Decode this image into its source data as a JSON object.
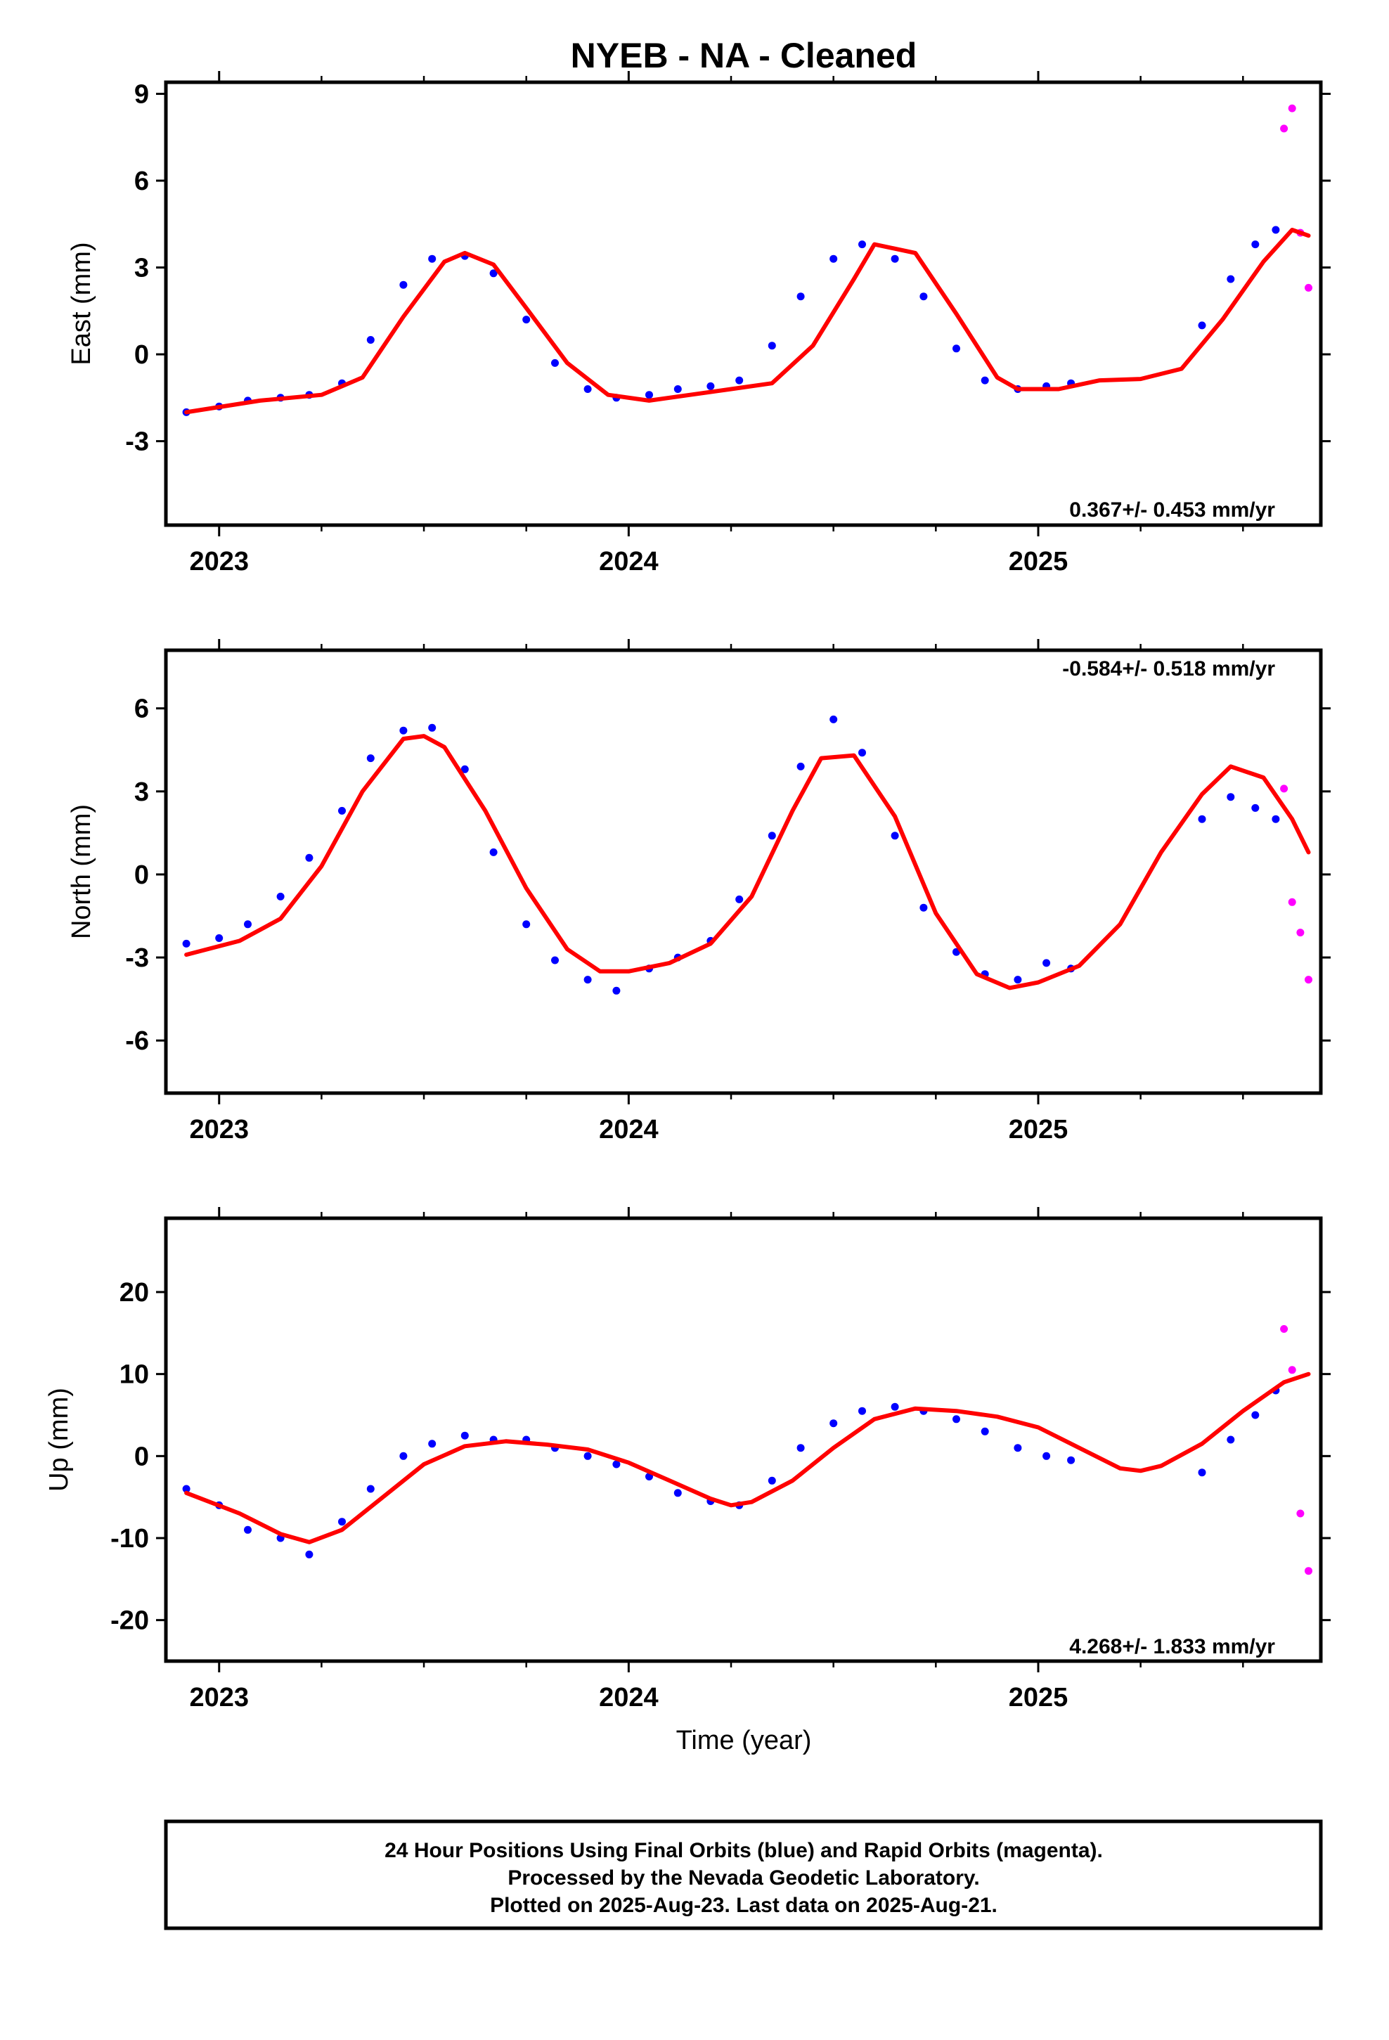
{
  "title": "NYEB  - NA - Cleaned",
  "colors": {
    "final_orbits": "#0000ff",
    "rapid_orbits": "#ff00ff",
    "model_fit": "#ff0000"
  },
  "x_axis": {
    "label": "Time (year)",
    "ticks": [
      "2023",
      "2024",
      "2025"
    ]
  },
  "chart_data": [
    {
      "type": "scatter",
      "panel": "east",
      "ylabel": "East (mm)",
      "rate": "0.367+/- 0.453 mm/yr",
      "xlim": [
        2022.87,
        2025.69
      ],
      "ylim": [
        -5.9,
        9.4
      ],
      "yticks": [
        "9",
        "6",
        "3",
        "0",
        "-3"
      ],
      "ytick_values": [
        9,
        6,
        3,
        0,
        -3
      ],
      "series": [
        {
          "name": "",
          "kind": "points",
          "color": "final",
          "x": [
            2022.92,
            2023.0,
            2023.07,
            2023.15,
            2023.22,
            2023.3,
            2023.37,
            2023.45,
            2023.52,
            2023.6,
            2023.67,
            2023.75,
            2023.82,
            2023.9,
            2023.97,
            2024.05,
            2024.12,
            2024.2,
            2024.27,
            2024.35,
            2024.42,
            2024.5,
            2024.57,
            2024.65,
            2024.72,
            2024.8,
            2024.87,
            2024.95,
            2025.02,
            2025.08,
            2025.4,
            2025.47,
            2025.53,
            2025.58
          ],
          "y": [
            -2.0,
            -1.8,
            -1.6,
            -1.5,
            -1.4,
            -1.0,
            0.5,
            2.4,
            3.3,
            3.4,
            2.8,
            1.2,
            -0.3,
            -1.2,
            -1.5,
            -1.4,
            -1.2,
            -1.1,
            -0.9,
            0.3,
            2.0,
            3.3,
            3.8,
            3.3,
            2.0,
            0.2,
            -0.9,
            -1.2,
            -1.1,
            -1.0,
            1.0,
            2.6,
            3.8,
            4.3
          ]
        },
        {
          "name": "",
          "kind": "points",
          "color": "rapid",
          "x": [
            2025.6,
            2025.62,
            2025.64,
            2025.66
          ],
          "y": [
            7.8,
            8.5,
            4.2,
            2.3
          ]
        },
        {
          "name": "",
          "kind": "line",
          "color": "fit",
          "x": [
            2022.92,
            2023.1,
            2023.25,
            2023.35,
            2023.45,
            2023.55,
            2023.6,
            2023.67,
            2023.75,
            2023.85,
            2023.95,
            2024.05,
            2024.15,
            2024.25,
            2024.35,
            2024.45,
            2024.55,
            2024.6,
            2024.7,
            2024.8,
            2024.9,
            2024.95,
            2025.05,
            2025.15,
            2025.25,
            2025.35,
            2025.45,
            2025.55,
            2025.62,
            2025.66
          ],
          "y": [
            -2.0,
            -1.6,
            -1.4,
            -0.8,
            1.3,
            3.2,
            3.5,
            3.1,
            1.6,
            -0.3,
            -1.4,
            -1.6,
            -1.4,
            -1.2,
            -1.0,
            0.3,
            2.6,
            3.8,
            3.5,
            1.4,
            -0.8,
            -1.2,
            -1.2,
            -0.9,
            -0.85,
            -0.5,
            1.2,
            3.2,
            4.3,
            4.1
          ]
        }
      ]
    },
    {
      "type": "scatter",
      "panel": "north",
      "ylabel": "North (mm)",
      "rate": "-0.584+/- 0.518 mm/yr",
      "xlim": [
        2022.87,
        2025.69
      ],
      "ylim": [
        -7.9,
        8.1
      ],
      "yticks": [
        "6",
        "3",
        "0",
        "-3",
        "-6"
      ],
      "ytick_values": [
        6,
        3,
        0,
        -3,
        -6
      ],
      "series": [
        {
          "name": "",
          "kind": "points",
          "color": "final",
          "x": [
            2022.92,
            2023.0,
            2023.07,
            2023.15,
            2023.22,
            2023.3,
            2023.37,
            2023.45,
            2023.52,
            2023.6,
            2023.67,
            2023.75,
            2023.82,
            2023.9,
            2023.97,
            2024.05,
            2024.12,
            2024.2,
            2024.27,
            2024.35,
            2024.42,
            2024.5,
            2024.57,
            2024.65,
            2024.72,
            2024.8,
            2024.87,
            2024.95,
            2025.02,
            2025.08,
            2025.4,
            2025.47,
            2025.53,
            2025.58
          ],
          "y": [
            -2.5,
            -2.3,
            -1.8,
            -0.8,
            0.6,
            2.3,
            4.2,
            5.2,
            5.3,
            3.8,
            0.8,
            -1.8,
            -3.1,
            -3.8,
            -4.2,
            -3.4,
            -3.0,
            -2.4,
            -0.9,
            1.4,
            3.9,
            5.6,
            4.4,
            1.4,
            -1.2,
            -2.8,
            -3.6,
            -3.8,
            -3.2,
            -3.4,
            2.0,
            2.8,
            2.4,
            2.0
          ]
        },
        {
          "name": "",
          "kind": "points",
          "color": "rapid",
          "x": [
            2025.6,
            2025.62,
            2025.64,
            2025.66
          ],
          "y": [
            3.1,
            -1.0,
            -2.1,
            -3.8
          ]
        },
        {
          "name": "",
          "kind": "line",
          "color": "fit",
          "x": [
            2022.92,
            2023.05,
            2023.15,
            2023.25,
            2023.35,
            2023.45,
            2023.5,
            2023.55,
            2023.65,
            2023.75,
            2023.85,
            2023.93,
            2024.0,
            2024.1,
            2024.2,
            2024.3,
            2024.4,
            2024.47,
            2024.55,
            2024.65,
            2024.75,
            2024.85,
            2024.93,
            2025.0,
            2025.1,
            2025.2,
            2025.3,
            2025.4,
            2025.47,
            2025.55,
            2025.62,
            2025.66
          ],
          "y": [
            -2.9,
            -2.4,
            -1.6,
            0.3,
            3.0,
            4.9,
            5.0,
            4.6,
            2.3,
            -0.5,
            -2.7,
            -3.5,
            -3.5,
            -3.2,
            -2.5,
            -0.8,
            2.3,
            4.2,
            4.3,
            2.1,
            -1.4,
            -3.6,
            -4.1,
            -3.9,
            -3.3,
            -1.8,
            0.8,
            2.9,
            3.9,
            3.5,
            2.0,
            0.8
          ]
        }
      ]
    },
    {
      "type": "scatter",
      "panel": "up",
      "ylabel": "Up (mm)",
      "rate": "4.268+/- 1.833 mm/yr",
      "xlim": [
        2022.87,
        2025.69
      ],
      "ylim": [
        -25,
        29
      ],
      "yticks": [
        "20",
        "10",
        "0",
        "-10",
        "-20"
      ],
      "ytick_values": [
        20,
        10,
        0,
        -10,
        -20
      ],
      "series": [
        {
          "name": "",
          "kind": "points",
          "color": "final",
          "x": [
            2022.92,
            2023.0,
            2023.07,
            2023.15,
            2023.22,
            2023.3,
            2023.37,
            2023.45,
            2023.52,
            2023.6,
            2023.67,
            2023.75,
            2023.82,
            2023.9,
            2023.97,
            2024.05,
            2024.12,
            2024.2,
            2024.27,
            2024.35,
            2024.42,
            2024.5,
            2024.57,
            2024.65,
            2024.72,
            2024.8,
            2024.87,
            2024.95,
            2025.02,
            2025.08,
            2025.4,
            2025.47,
            2025.53,
            2025.58
          ],
          "y": [
            -4.0,
            -6.0,
            -9.0,
            -10.0,
            -12.0,
            -8.0,
            -4.0,
            0.0,
            1.5,
            2.5,
            2.0,
            2.0,
            1.0,
            0.0,
            -1.0,
            -2.5,
            -4.5,
            -5.5,
            -6.0,
            -3.0,
            1.0,
            4.0,
            5.5,
            6.0,
            5.5,
            4.5,
            3.0,
            1.0,
            0.0,
            -0.5,
            -2.0,
            2.0,
            5.0,
            8.0
          ]
        },
        {
          "name": "",
          "kind": "points",
          "color": "rapid",
          "x": [
            2025.6,
            2025.62,
            2025.64,
            2025.66
          ],
          "y": [
            15.5,
            10.5,
            -7.0,
            -14.0
          ]
        },
        {
          "name": "",
          "kind": "line",
          "color": "fit",
          "x": [
            2022.92,
            2023.05,
            2023.15,
            2023.22,
            2023.3,
            2023.4,
            2023.5,
            2023.6,
            2023.7,
            2023.8,
            2023.9,
            2024.0,
            2024.1,
            2024.2,
            2024.25,
            2024.3,
            2024.4,
            2024.5,
            2024.6,
            2024.7,
            2024.8,
            2024.9,
            2025.0,
            2025.1,
            2025.2,
            2025.25,
            2025.3,
            2025.4,
            2025.5,
            2025.6,
            2025.66
          ],
          "y": [
            -4.5,
            -7.0,
            -9.5,
            -10.5,
            -9.0,
            -5.0,
            -1.0,
            1.2,
            1.8,
            1.4,
            0.8,
            -0.8,
            -3.0,
            -5.2,
            -6.0,
            -5.6,
            -3.0,
            1.0,
            4.5,
            5.8,
            5.5,
            4.8,
            3.5,
            1.0,
            -1.5,
            -1.8,
            -1.2,
            1.5,
            5.5,
            9.0,
            10.0
          ]
        }
      ]
    }
  ],
  "footer": {
    "line1": "24 Hour Positions Using Final Orbits (blue) and Rapid Orbits (magenta).",
    "line2": "Processed by the Nevada Geodetic Laboratory.",
    "line3": "Plotted on 2025-Aug-23. Last data on 2025-Aug-21."
  }
}
